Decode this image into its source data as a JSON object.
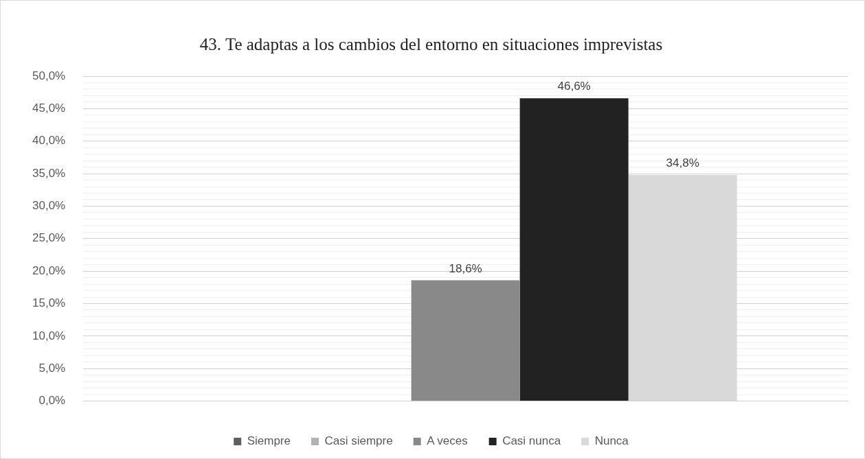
{
  "chart_data": {
    "type": "bar",
    "title": "43. Te adaptas a los cambios del entorno en situaciones imprevistas",
    "categories": [
      null
    ],
    "series": [
      {
        "name": "Siempre",
        "color": "#5f5f5f",
        "values": [
          0
        ],
        "value_labels": [
          null
        ]
      },
      {
        "name": "Casi siempre",
        "color": "#b2b2b2",
        "values": [
          0
        ],
        "value_labels": [
          null
        ]
      },
      {
        "name": "A veces",
        "color": "#898989",
        "values": [
          18.6
        ],
        "value_labels": [
          "18,6%"
        ]
      },
      {
        "name": "Casi nunca",
        "color": "#222222",
        "values": [
          46.6
        ],
        "value_labels": [
          "46,6%"
        ]
      },
      {
        "name": "Nunca",
        "color": "#d9d9d9",
        "values": [
          34.8
        ],
        "value_labels": [
          "34,8%"
        ]
      }
    ],
    "ylim": [
      0,
      50
    ],
    "yticks": [
      {
        "value": 0,
        "label": "0,0%"
      },
      {
        "value": 1,
        "label": null
      },
      {
        "value": 2,
        "label": null
      },
      {
        "value": 3,
        "label": null
      },
      {
        "value": 4,
        "label": null
      },
      {
        "value": 5,
        "label": "5,0%"
      },
      {
        "value": 6,
        "label": null
      },
      {
        "value": 7,
        "label": null
      },
      {
        "value": 8,
        "label": null
      },
      {
        "value": 9,
        "label": null
      },
      {
        "value": 10,
        "label": "10,0%"
      },
      {
        "value": 11,
        "label": null
      },
      {
        "value": 12,
        "label": null
      },
      {
        "value": 13,
        "label": null
      },
      {
        "value": 14,
        "label": null
      },
      {
        "value": 15,
        "label": "15,0%"
      },
      {
        "value": 16,
        "label": null
      },
      {
        "value": 17,
        "label": null
      },
      {
        "value": 18,
        "label": null
      },
      {
        "value": 19,
        "label": null
      },
      {
        "value": 20,
        "label": "20,0%"
      },
      {
        "value": 21,
        "label": null
      },
      {
        "value": 22,
        "label": null
      },
      {
        "value": 23,
        "label": null
      },
      {
        "value": 24,
        "label": null
      },
      {
        "value": 25,
        "label": "25,0%"
      },
      {
        "value": 26,
        "label": null
      },
      {
        "value": 27,
        "label": null
      },
      {
        "value": 28,
        "label": null
      },
      {
        "value": 29,
        "label": null
      },
      {
        "value": 30,
        "label": "30,0%"
      },
      {
        "value": 31,
        "label": null
      },
      {
        "value": 32,
        "label": null
      },
      {
        "value": 33,
        "label": null
      },
      {
        "value": 34,
        "label": null
      },
      {
        "value": 35,
        "label": "35,0%"
      },
      {
        "value": 36,
        "label": null
      },
      {
        "value": 37,
        "label": null
      },
      {
        "value": 38,
        "label": null
      },
      {
        "value": 39,
        "label": null
      },
      {
        "value": 40,
        "label": "40,0%"
      },
      {
        "value": 41,
        "label": null
      },
      {
        "value": 42,
        "label": null
      },
      {
        "value": 43,
        "label": null
      },
      {
        "value": 44,
        "label": null
      },
      {
        "value": 45,
        "label": "45,0%"
      },
      {
        "value": 46,
        "label": null
      },
      {
        "value": 47,
        "label": null
      },
      {
        "value": 48,
        "label": null
      },
      {
        "value": 49,
        "label": null
      },
      {
        "value": 50,
        "label": "50,0%"
      }
    ],
    "grid": "y",
    "legend": "bottom"
  }
}
